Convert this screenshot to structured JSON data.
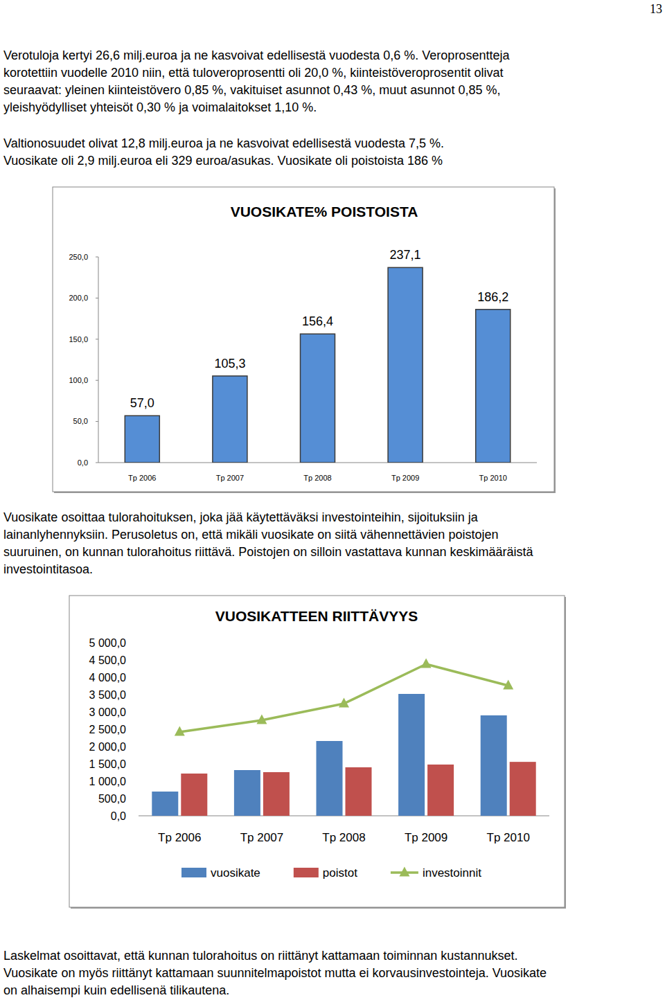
{
  "page": {
    "page_number": "13",
    "paragraphs": [
      {
        "lines": [
          "Verotuloja kertyi 26,6 milj.euroa ja ne kasvoivat edellisestä vuodesta 0,6 %.  Veroprosentteja",
          "korotettiin vuodelle 2010 niin, että tuloveroprosentti oli 20,0 %, kiinteistöveroprosentit olivat",
          "seuraavat: yleinen kiinteistövero 0,85 %, vakituiset asunnot 0,43 %, muut asunnot 0,85 %,",
          "yleishyödylliset yhteisöt 0,30 % ja voimalaitokset 1,10 %."
        ]
      },
      {
        "lines": [
          "Valtionosuudet olivat 12,8 milj.euroa ja ne kasvoivat edellisestä vuodesta 7,5 %.",
          "Vuosikate oli 2,9 milj.euroa eli 329 euroa/asukas. Vuosikate oli poistoista 186 %"
        ]
      },
      {
        "lines": [
          "Vuosikate osoittaa tulorahoituksen, joka jää käytettäväksi investointeihin, sijoituksiin ja",
          "lainanlyhennyksiin. Perusoletus on, että mikäli vuosikate on siitä vähennettävien poistojen",
          "suuruinen, on kunnan tulorahoitus riittävä. Poistojen on silloin vastattava kunnan keskimääräistä",
          "investointitasoa."
        ]
      },
      {
        "lines": [
          "Laskelmat osoittavat, että kunnan tulorahoitus on riittänyt kattamaan toiminnan kustannukset.",
          "Vuosikate on myös riittänyt kattamaan suunnitelmapoistot mutta ei korvausinvestointeja. Vuosikate",
          "on alhaisempi kuin edellisenä tilikautena."
        ]
      }
    ]
  },
  "chart_data": [
    {
      "type": "bar",
      "title": "VUOSIKATE% POISTOISTA",
      "categories": [
        "Tp 2006",
        "Tp 2007",
        "Tp 2008",
        "Tp 2009",
        "Tp 2010"
      ],
      "values": [
        57.0,
        105.3,
        156.4,
        237.1,
        186.2
      ],
      "value_labels": [
        "57,0",
        "105,3",
        "156,4",
        "237,1",
        "186,2"
      ],
      "data_labels": true,
      "color": "#558ed5",
      "ylim": [
        0,
        250
      ],
      "yticks": [
        {
          "value": 0,
          "label": "0,0"
        },
        {
          "value": 50,
          "label": "50,0"
        },
        {
          "value": 100,
          "label": "100,0"
        },
        {
          "value": 150,
          "label": "150,0"
        },
        {
          "value": 200,
          "label": "200,0"
        },
        {
          "value": 250,
          "label": "250,0"
        }
      ],
      "grid": false
    },
    {
      "type": "bar",
      "title": "VUOSIKATTEEN RIITTÄVYYS",
      "categories": [
        "Tp 2006",
        "Tp 2007",
        "Tp 2008",
        "Tp 2009",
        "Tp 2010"
      ],
      "series": [
        {
          "name": "vuosikate",
          "color": "#4f81bd",
          "values": [
            700,
            1320,
            2160,
            3520,
            2900
          ]
        },
        {
          "name": "poistot",
          "color": "#c0504d",
          "values": [
            1220,
            1260,
            1400,
            1480,
            1557
          ]
        },
        {
          "name": "investoinnit",
          "type": "line",
          "marker": "triangle",
          "color": "#9bbb59",
          "values": [
            2420,
            2760,
            3240,
            4380,
            3760
          ]
        }
      ],
      "ylim": [
        0,
        5000
      ],
      "yticks": [
        {
          "value": 0,
          "label": "0,0"
        },
        {
          "value": 500,
          "label": "500,0"
        },
        {
          "value": 1000,
          "label": "1 000,0"
        },
        {
          "value": 1500,
          "label": "1 500,0"
        },
        {
          "value": 2000,
          "label": "2 000,0"
        },
        {
          "value": 2500,
          "label": "2 500,0"
        },
        {
          "value": 3000,
          "label": "3 000,0"
        },
        {
          "value": 3500,
          "label": "3 500,0"
        },
        {
          "value": 4000,
          "label": "4 000,0"
        },
        {
          "value": 4500,
          "label": "4 500,0"
        },
        {
          "value": 5000,
          "label": "5 000,0"
        }
      ],
      "legend": "bottom",
      "grid": false
    }
  ]
}
